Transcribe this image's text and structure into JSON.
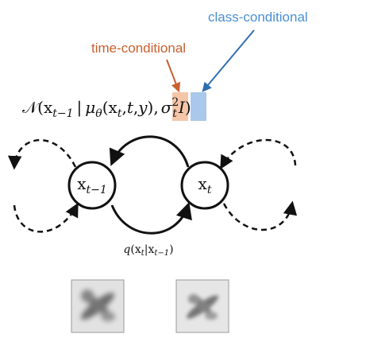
{
  "annotations": {
    "time_label": "time-conditional",
    "class_label": "class-conditional"
  },
  "formula": {
    "normal_symbol": "𝒩",
    "open_paren": "(",
    "x": "x",
    "sub_t_minus_1": "t−1",
    "bar": "|",
    "mu": "μ",
    "sub_theta": "θ",
    "sub_t": "t",
    "comma": ",",
    "t_var": "t",
    "y_var": "y",
    "close_args": "),",
    "sigma": "σ",
    "sup_2": "2",
    "identity": "I",
    "close_paren": ")"
  },
  "nodes": {
    "left": {
      "base": "x",
      "sub": "t−1"
    },
    "right": {
      "base": "x",
      "sub": "t"
    }
  },
  "forward_process": {
    "q": "q",
    "open_paren": "(",
    "x": "x",
    "sub_t": "t",
    "bar": "|",
    "sub_t_minus_1": "t−1",
    "close_paren": ")"
  },
  "colors": {
    "time_accent": "#c8602f",
    "time_highlight": "#f5c6a8",
    "class_accent": "#2f6fb0",
    "class_label": "#4a8fd0",
    "class_highlight": "#a9c8ea",
    "ink": "#111111"
  }
}
